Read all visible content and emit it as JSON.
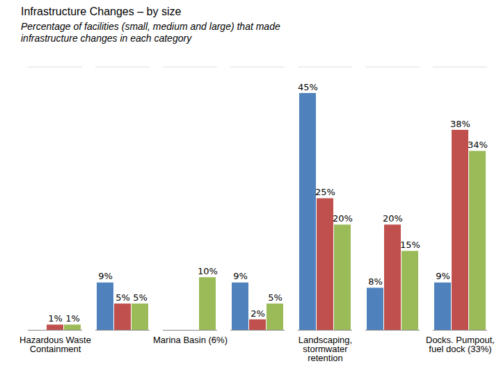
{
  "chart_data": {
    "type": "bar",
    "title": "Infrastructure Changes – by size",
    "subtitle": "Percentage of facilities (small, medium and large) that made infrastructure changes in each category",
    "categories": [
      "Hazardous Waste Containment",
      null,
      "Marina Basin (6%)",
      null,
      "Landscaping, stormwater retention",
      null,
      "Docks. Pumpout, fuel dock (33%)"
    ],
    "series": [
      {
        "name": "Small",
        "color": "#4f81bd",
        "values": [
          null,
          9,
          null,
          9,
          45,
          8,
          9
        ],
        "value_labels": [
          null,
          "9%",
          null,
          "9%",
          "45%",
          "8%",
          "9%"
        ]
      },
      {
        "name": "Medium",
        "color": "#c0504d",
        "values": [
          1,
          5,
          null,
          2,
          25,
          20,
          38
        ],
        "value_labels": [
          "1%",
          "5%",
          null,
          "2%",
          "25%",
          "20%",
          "38%"
        ]
      },
      {
        "name": "Large",
        "color": "#9bbb59",
        "values": [
          1,
          5,
          10,
          5,
          20,
          15,
          34
        ],
        "value_labels": [
          "1%",
          "5%",
          "10%",
          "5%",
          "20%",
          "15%",
          "34%"
        ]
      }
    ],
    "ylim": [
      0,
      50
    ],
    "grid": false,
    "legend": "top",
    "data_labels": true,
    "tick_labels": "x"
  }
}
